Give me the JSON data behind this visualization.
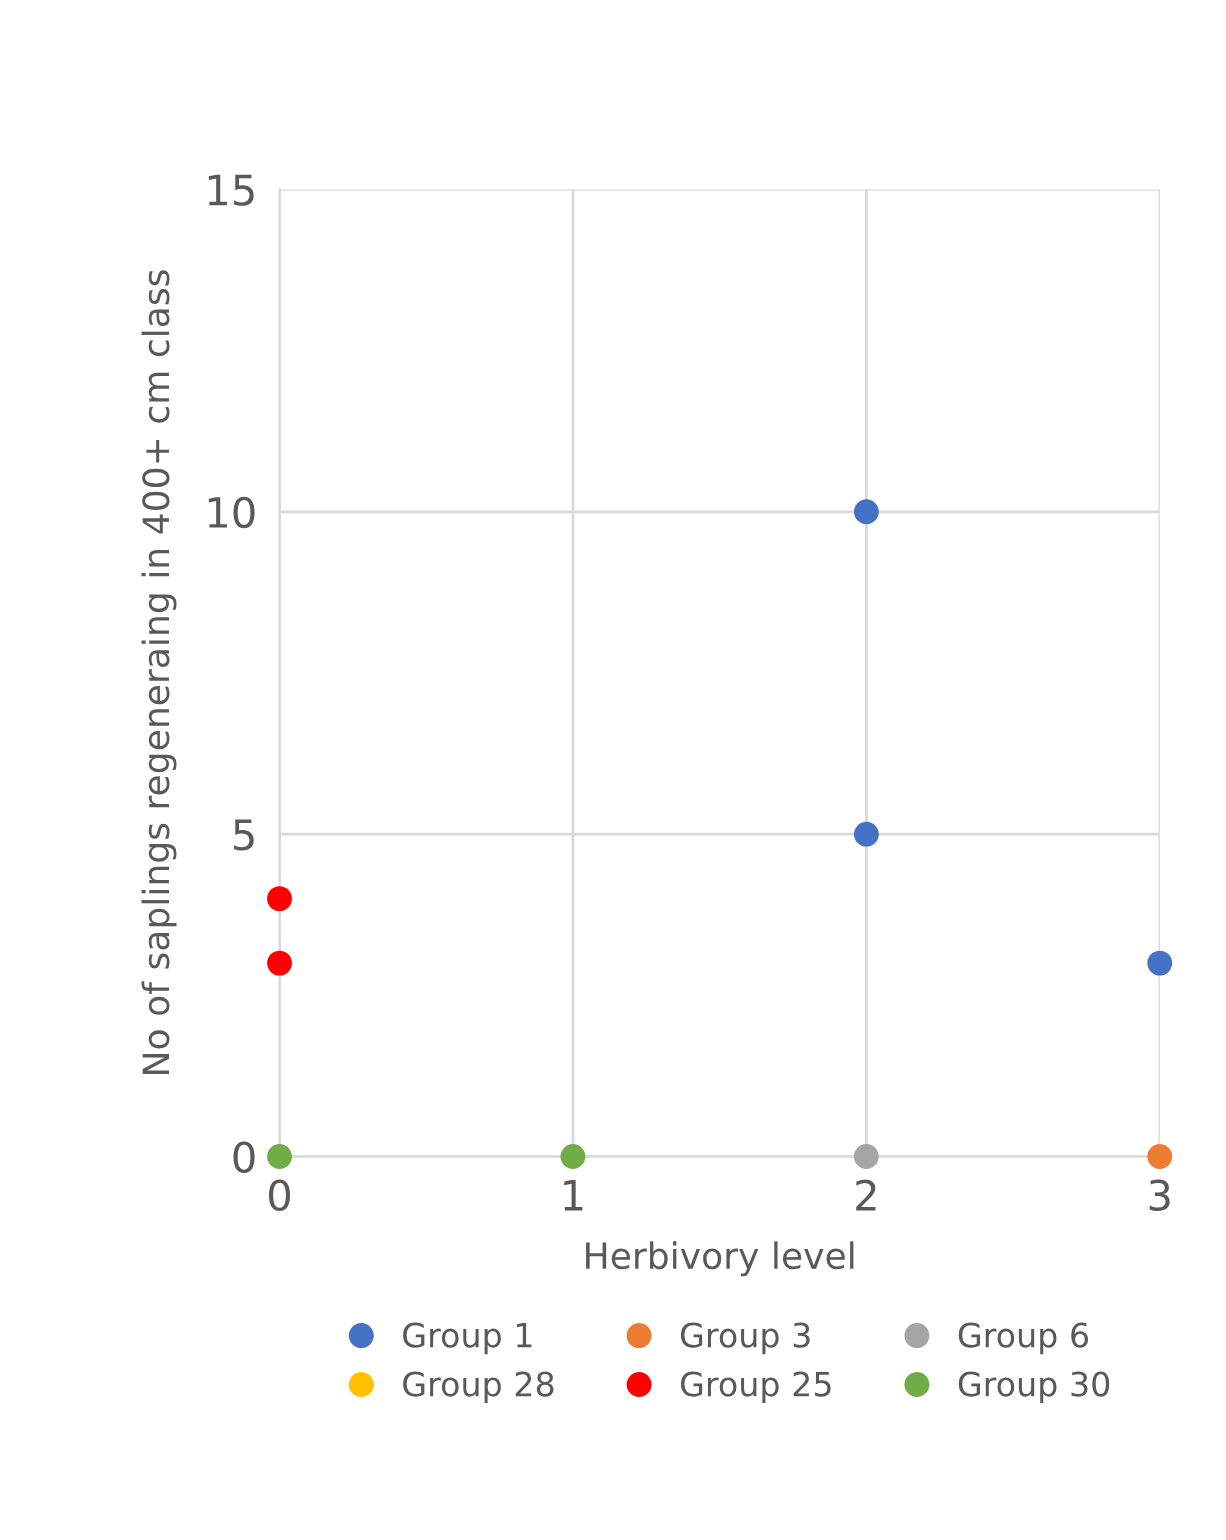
{
  "chart_data": {
    "type": "scatter",
    "xlabel": "Herbivory level",
    "ylabel": "No of saplings regeneraing in 400+ cm class",
    "xlim": [
      0,
      3
    ],
    "ylim": [
      0,
      15
    ],
    "xticks": [
      0,
      1,
      2,
      3
    ],
    "yticks": [
      0,
      5,
      10,
      15
    ],
    "grid": true,
    "legend": "bottom",
    "marker": "circle",
    "series": [
      {
        "name": "Group 1",
        "color": "#4472c4",
        "x": [
          2,
          2,
          3
        ],
        "values": [
          10,
          5,
          3
        ]
      },
      {
        "name": "Group 3",
        "color": "#ed7d31",
        "x": [
          3
        ],
        "values": [
          0
        ]
      },
      {
        "name": "Group 6",
        "color": "#a5a5a5",
        "x": [
          2
        ],
        "values": [
          0
        ]
      },
      {
        "name": "Group 28",
        "color": "#ffc000"
      },
      {
        "name": "Group 25",
        "color": "#ff0000",
        "x": [
          0,
          0
        ],
        "values": [
          4,
          3
        ]
      },
      {
        "name": "Group 30",
        "color": "#70ad47",
        "x": [
          0,
          1
        ],
        "values": [
          0,
          0
        ]
      }
    ]
  }
}
